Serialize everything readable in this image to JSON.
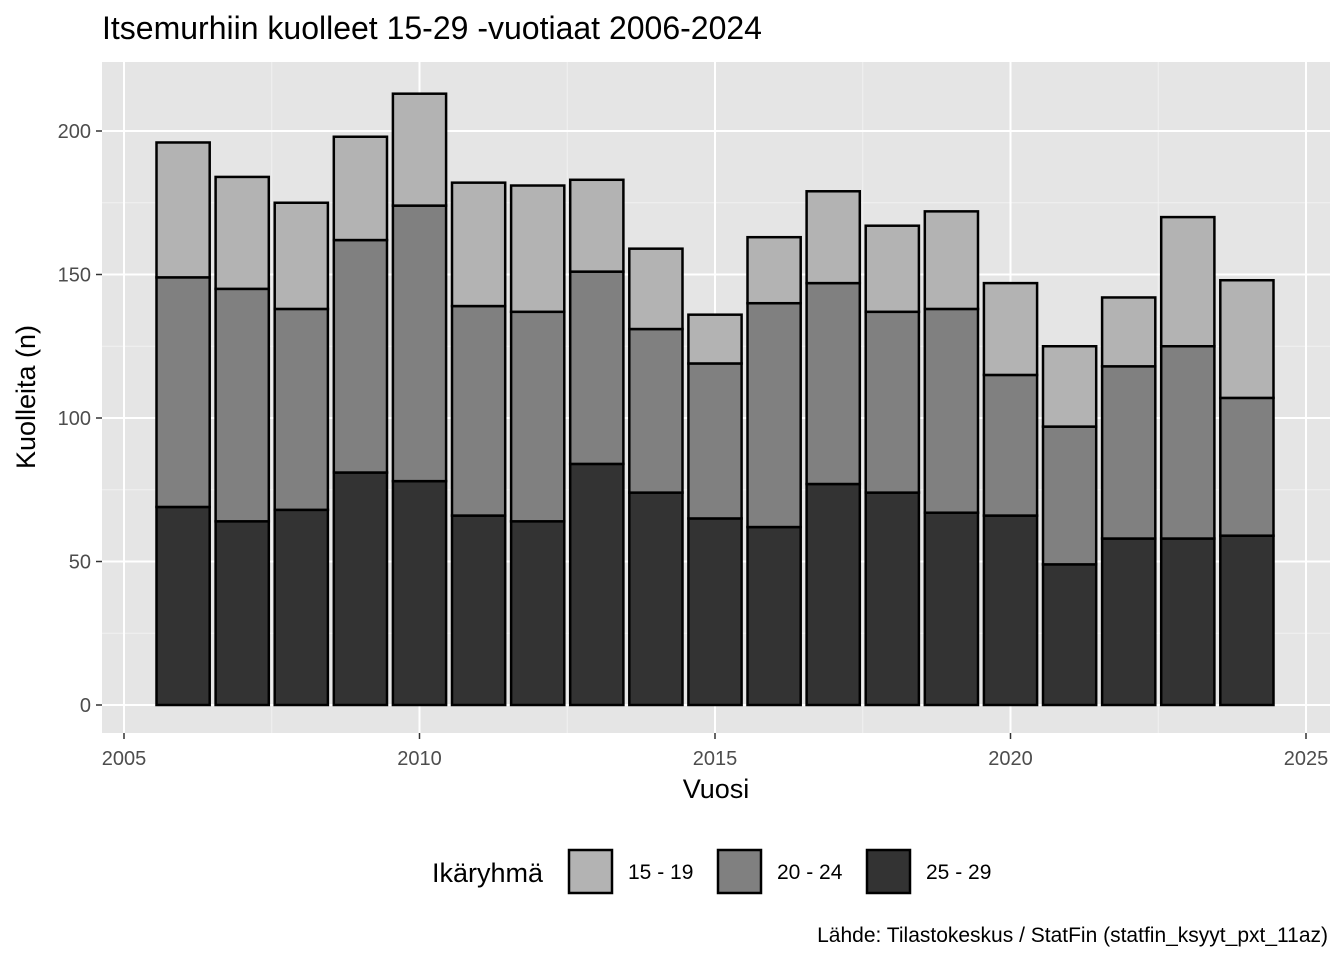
{
  "chart_data": {
    "type": "bar",
    "stacked": true,
    "title": "Itsemurhiin kuolleet 15-29 -vuotiaat 2006-2024",
    "xlabel": "Vuosi",
    "ylabel": "Kuolleita (n)",
    "x": [
      2006,
      2007,
      2008,
      2009,
      2010,
      2011,
      2012,
      2013,
      2014,
      2015,
      2016,
      2017,
      2018,
      2019,
      2020,
      2021,
      2022,
      2023,
      2024
    ],
    "xlim": [
      2005,
      2025
    ],
    "ylim": [
      0,
      200
    ],
    "x_ticks": [
      "2005",
      "2010",
      "2015",
      "2020",
      "2025"
    ],
    "y_ticks": [
      "0",
      "50",
      "100",
      "150",
      "200"
    ],
    "legend_title": "Ikäryhmä",
    "legend_position": "bottom",
    "grid": true,
    "series": [
      {
        "name": "25 - 29",
        "color": "#333333",
        "values": [
          69,
          64,
          68,
          81,
          78,
          66,
          64,
          84,
          74,
          65,
          62,
          77,
          74,
          67,
          66,
          49,
          58,
          58,
          59
        ]
      },
      {
        "name": "20 - 24",
        "color": "#808080",
        "values": [
          80,
          81,
          70,
          81,
          96,
          73,
          73,
          67,
          57,
          54,
          78,
          70,
          63,
          71,
          49,
          48,
          60,
          67,
          48
        ]
      },
      {
        "name": "15 - 19",
        "color": "#b3b3b3",
        "values": [
          47,
          39,
          37,
          36,
          39,
          43,
          44,
          32,
          28,
          17,
          23,
          32,
          30,
          34,
          32,
          28,
          24,
          45,
          41
        ]
      }
    ],
    "legend_order": [
      "15 - 19",
      "20 - 24",
      "25 - 29"
    ],
    "caption": "Lähde: Tilastokeskus / StatFin (statfin_ksyyt_pxt_11az)"
  }
}
